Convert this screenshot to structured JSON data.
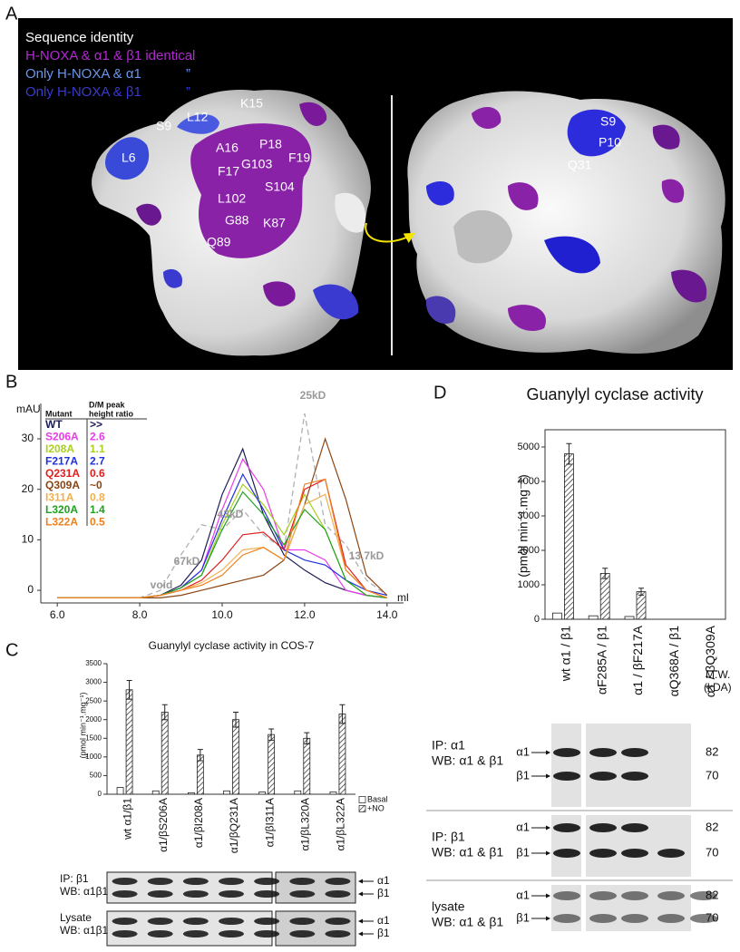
{
  "panels": {
    "a": {
      "label": "A",
      "legend_title": "Sequence identity",
      "legend": [
        {
          "text": "H-NOXA & α1 & β1 identical",
          "color": "#b02ad0"
        },
        {
          "text": "Only H-NOXA & α1",
          "color": "#6a96ec"
        },
        {
          "text": "Only H-NOXA & β1",
          "color": "#3a3ad0"
        }
      ],
      "ditto": "”",
      "residues_left": [
        "K15",
        "S9",
        "L12",
        "L6",
        "A16",
        "P18",
        "F19",
        "F17",
        "G103",
        "S104",
        "L102",
        "G88",
        "K87",
        "Q89"
      ],
      "residues_right": [
        "S9",
        "P10",
        "Q31"
      ]
    },
    "b": {
      "label": "B"
    },
    "c": {
      "label": "C",
      "blots": [
        {
          "lines": [
            "IP: β1",
            "WB: α1β1"
          ]
        },
        {
          "lines": [
            "Lysate",
            "WB: α1β1"
          ]
        }
      ],
      "bands": [
        "α1",
        "β1"
      ]
    },
    "d": {
      "label": "D",
      "blots": [
        {
          "lines": [
            "IP: α1",
            "WB: α1 & β1"
          ]
        },
        {
          "lines": [
            "IP: β1",
            "WB: α1 & β1"
          ]
        },
        {
          "lines": [
            "lysate",
            "WB: α1 & β1"
          ]
        }
      ],
      "bands": [
        "α1",
        "β1"
      ],
      "mw_title": [
        "M.W.",
        "(kDA)"
      ],
      "mw": [
        82,
        70
      ]
    }
  },
  "chart_data": [
    {
      "type": "line",
      "y_label": "mAU",
      "x_label": "ml",
      "x": [
        6,
        6.5,
        7,
        7.5,
        8,
        8.5,
        9,
        9.5,
        10,
        10.5,
        11,
        11.5,
        12,
        12.5,
        13,
        13.5,
        14
      ],
      "xlim": [
        5.6,
        14.4
      ],
      "ylim": [
        -2.5,
        37
      ],
      "xticks": [
        {
          "value": 6,
          "label": "6.0"
        },
        {
          "value": 8,
          "label": "8.0"
        },
        {
          "value": 10,
          "label": "10.0"
        },
        {
          "value": 12,
          "label": "12.0"
        },
        {
          "value": 14,
          "label": "14.0"
        }
      ],
      "yticks": [
        0,
        10,
        20,
        30
      ],
      "legend_header": [
        "Mutant",
        "D/M peak",
        "height ratio"
      ],
      "series": [
        {
          "name": "WT",
          "color": "#1c1c55",
          "ratio": ">>",
          "values": [
            -1.5,
            -1.5,
            -1.5,
            -1.5,
            -1.5,
            -1,
            1,
            6,
            19,
            28,
            15,
            7,
            4,
            1.5,
            0,
            -1,
            -1.5
          ]
        },
        {
          "name": "S206A",
          "color": "#e83ce8",
          "ratio": 2.6,
          "values": [
            -1.5,
            -1.5,
            -1.5,
            -1.5,
            -1.5,
            -1,
            0.5,
            4,
            16,
            26,
            20,
            8,
            8,
            6,
            0,
            -1,
            -1.5
          ]
        },
        {
          "name": "I208A",
          "color": "#a8d020",
          "ratio": 1.1,
          "values": [
            -1.5,
            -1.5,
            -1.5,
            -1.5,
            -1.5,
            -1,
            0.5,
            3,
            13,
            21,
            17,
            11,
            19,
            12,
            2,
            -1,
            -1.5
          ]
        },
        {
          "name": "F217A",
          "color": "#2030e0",
          "ratio": 2.7,
          "values": [
            -1.5,
            -1.5,
            -1.5,
            -1.5,
            -1.5,
            -1,
            0.5,
            4,
            14,
            23,
            16,
            8,
            6,
            5,
            2,
            0,
            -1
          ]
        },
        {
          "name": "Q231A",
          "color": "#e02020",
          "ratio": 0.6,
          "values": [
            -1.5,
            -1.5,
            -1.5,
            -1.5,
            -1.5,
            -1,
            0,
            2,
            6,
            11,
            11.5,
            8,
            20,
            22,
            5,
            0,
            -1.5
          ]
        },
        {
          "name": "Q309A",
          "color": "#8b4513",
          "ratio": "~0",
          "values": [
            -1.5,
            -1.5,
            -1.5,
            -1.5,
            -1.5,
            -1.5,
            -1,
            0,
            1,
            2,
            3,
            6,
            17,
            30,
            18,
            3,
            -1
          ]
        },
        {
          "name": "I311A",
          "color": "#f0b050",
          "ratio": 0.8,
          "values": [
            -1.5,
            -1.5,
            -1.5,
            -1.5,
            -1.5,
            -1,
            0,
            1.5,
            4,
            8,
            8.5,
            6,
            17,
            19,
            4,
            0,
            -1.5
          ]
        },
        {
          "name": "L320A",
          "color": "#20a020",
          "ratio": 1.4,
          "values": [
            -1.5,
            -1.5,
            -1.5,
            -1.5,
            -1.5,
            -1,
            0.5,
            3,
            12,
            19.5,
            15,
            9,
            16,
            12,
            2,
            -1,
            -1.5
          ]
        },
        {
          "name": "L322A",
          "color": "#f08020",
          "ratio": 0.5,
          "values": [
            -1.5,
            -1.5,
            -1.5,
            -1.5,
            -1.5,
            -1,
            0,
            1,
            3,
            7,
            8.5,
            6,
            21,
            22,
            4,
            0,
            -1.5
          ]
        }
      ],
      "standard": {
        "color": "#b0b0b0",
        "values": [
          -1.5,
          -1.5,
          -1.5,
          -1.5,
          -1.5,
          0,
          7,
          13,
          12,
          16,
          11,
          8,
          35,
          13,
          9,
          2,
          -1
        ]
      },
      "annotations": [
        "void",
        "67kD",
        "43kD",
        "25kD",
        "13.7kD"
      ]
    },
    {
      "type": "bar",
      "title": "Guanylyl cyclase activity in COS-7",
      "y_label": "(pmol min⁻¹.mg⁻¹)",
      "categories": [
        "wt α1/β1",
        "α1/βS206A",
        "α1/βI208A",
        "α1/βQ231A",
        "α1/βI311A",
        "α1/βL320A",
        "α1/βL322A"
      ],
      "ylim": [
        0,
        3500
      ],
      "yticks": [
        0,
        500,
        1000,
        1500,
        2000,
        2500,
        3000,
        3500
      ],
      "series": [
        {
          "name": "Basal",
          "color": "#ffffff",
          "values": [
            180,
            90,
            40,
            90,
            60,
            90,
            60
          ]
        },
        {
          "name": "+NO",
          "color": "#333333",
          "hatch": true,
          "values": [
            2800,
            2200,
            1050,
            2000,
            1600,
            1500,
            2150
          ],
          "errors": [
            250,
            200,
            150,
            200,
            150,
            150,
            250
          ]
        }
      ]
    },
    {
      "type": "bar",
      "title": "Guanylyl cyclase activity",
      "y_label": "(pmol min⁻¹.mg⁻¹)",
      "categories": [
        "wt α1 / β1",
        "αF285A / β1",
        "α1 / βF217A",
        "αQ368A / β1",
        "α1 / βQ309A"
      ],
      "ylim": [
        0,
        5500
      ],
      "yticks": [
        0,
        1000,
        2000,
        3000,
        4000,
        5000
      ],
      "frame": true,
      "series": [
        {
          "color": "#ffffff",
          "values": [
            180,
            100,
            80,
            0,
            0
          ]
        },
        {
          "color": "#333333",
          "hatch": true,
          "values": [
            4800,
            1330,
            800,
            0,
            0
          ],
          "errors": [
            300,
            150,
            100,
            null,
            null
          ]
        }
      ]
    }
  ]
}
